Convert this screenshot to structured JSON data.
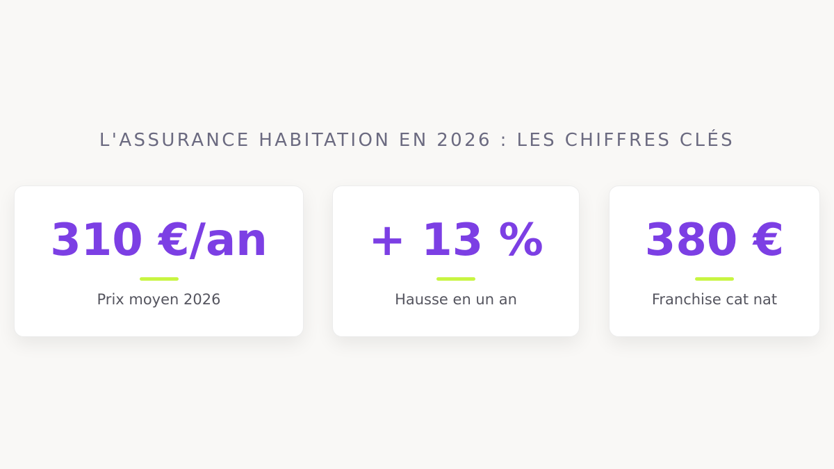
{
  "header": {
    "title": "L'ASSURANCE HABITATION EN 2026 : LES CHIFFRES CLÉS"
  },
  "colors": {
    "accent": "#7c3fe4",
    "underline": "#c8f542",
    "title_text": "#6b6a80",
    "label_text": "#55555f",
    "background": "#f9f8f6"
  },
  "stats": [
    {
      "value": "310 €/an",
      "label": "Prix moyen 2026"
    },
    {
      "value": "+ 13 %",
      "label": "Hausse en un an"
    },
    {
      "value": "380 €",
      "label": "Franchise cat nat"
    }
  ]
}
